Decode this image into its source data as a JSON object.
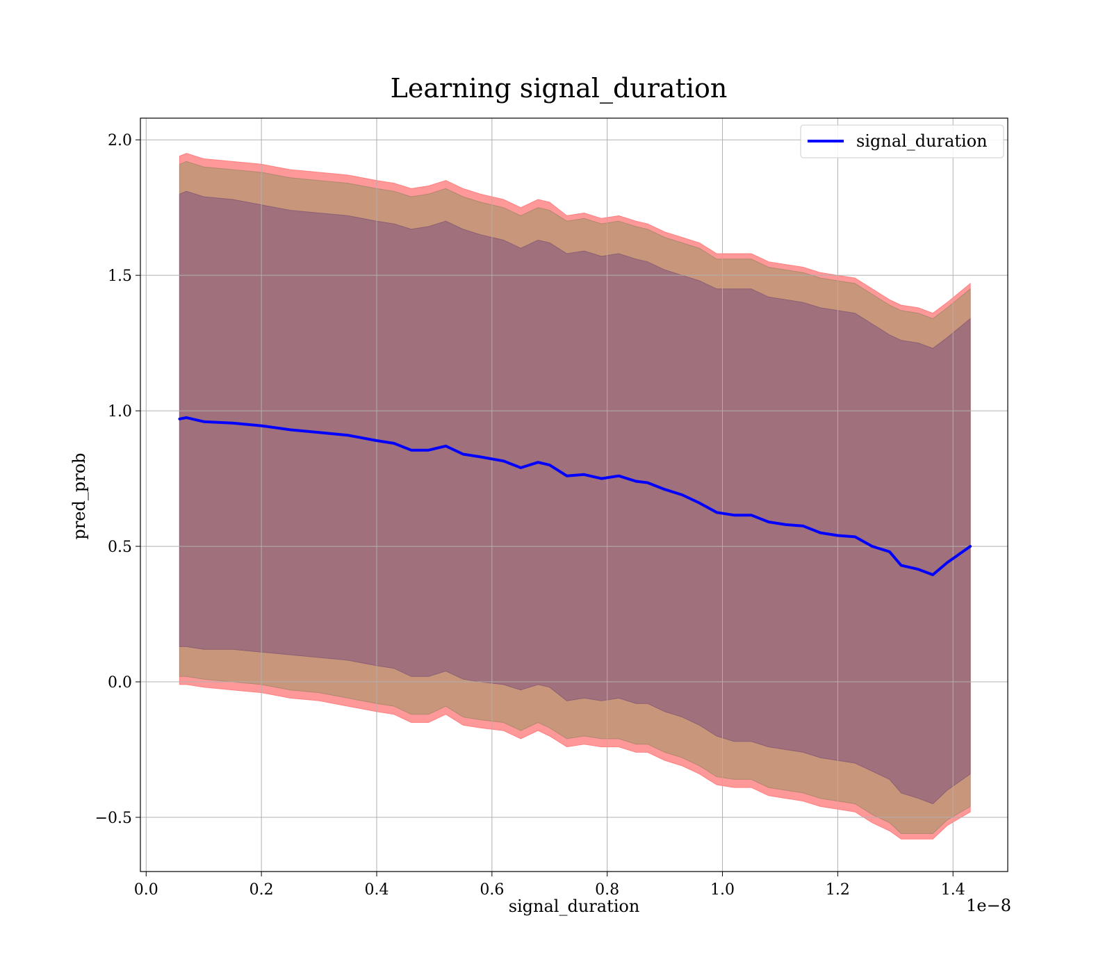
{
  "chart_data": {
    "type": "line",
    "title": "Learning signal_duration",
    "xlabel": "signal_duration",
    "ylabel": "pred_prob",
    "x_offset_label": "1e−8",
    "xlim": [
      -0.01,
      1.495
    ],
    "ylim": [
      -0.7,
      2.08
    ],
    "x_ticks": [
      0.0,
      0.2,
      0.4,
      0.6,
      0.8,
      1.0,
      1.2,
      1.4
    ],
    "x_tick_labels": [
      "0.0",
      "0.2",
      "0.4",
      "0.6",
      "0.8",
      "1.0",
      "1.2",
      "1.4"
    ],
    "y_ticks": [
      -0.5,
      0.0,
      0.5,
      1.0,
      1.5,
      2.0
    ],
    "y_tick_labels": [
      "−0.5",
      "0.0",
      "0.5",
      "1.0",
      "1.5",
      "2.0"
    ],
    "grid": true,
    "legend_position": "top-right",
    "colors": {
      "line": "#0000ff",
      "band_outer": "#ff9999",
      "band_middle": "#c8967a",
      "band_inner": "#a0707c"
    },
    "x": [
      0.058,
      0.07,
      0.1,
      0.15,
      0.2,
      0.25,
      0.3,
      0.35,
      0.4,
      0.43,
      0.46,
      0.49,
      0.52,
      0.55,
      0.58,
      0.62,
      0.65,
      0.68,
      0.7,
      0.73,
      0.76,
      0.79,
      0.82,
      0.85,
      0.87,
      0.9,
      0.93,
      0.96,
      0.99,
      1.02,
      1.05,
      1.08,
      1.11,
      1.14,
      1.17,
      1.2,
      1.23,
      1.26,
      1.29,
      1.31,
      1.34,
      1.365,
      1.39,
      1.43
    ],
    "series": [
      {
        "name": "signal_duration",
        "values": [
          0.97,
          0.975,
          0.96,
          0.955,
          0.945,
          0.93,
          0.92,
          0.91,
          0.89,
          0.88,
          0.855,
          0.855,
          0.87,
          0.84,
          0.83,
          0.815,
          0.79,
          0.81,
          0.8,
          0.76,
          0.765,
          0.75,
          0.76,
          0.74,
          0.735,
          0.71,
          0.69,
          0.66,
          0.625,
          0.615,
          0.615,
          0.59,
          0.58,
          0.575,
          0.55,
          0.54,
          0.535,
          0.5,
          0.48,
          0.43,
          0.415,
          0.395,
          0.44,
          0.5
        ],
        "band_inner": {
          "upper": [
            1.8,
            1.81,
            1.79,
            1.78,
            1.76,
            1.74,
            1.73,
            1.72,
            1.7,
            1.69,
            1.67,
            1.68,
            1.7,
            1.67,
            1.65,
            1.63,
            1.6,
            1.63,
            1.62,
            1.58,
            1.59,
            1.57,
            1.58,
            1.56,
            1.55,
            1.52,
            1.5,
            1.48,
            1.45,
            1.45,
            1.45,
            1.42,
            1.41,
            1.4,
            1.38,
            1.37,
            1.36,
            1.32,
            1.28,
            1.26,
            1.25,
            1.23,
            1.27,
            1.34
          ],
          "lower": [
            0.13,
            0.13,
            0.12,
            0.12,
            0.11,
            0.1,
            0.09,
            0.08,
            0.06,
            0.05,
            0.02,
            0.02,
            0.04,
            0.01,
            0.0,
            -0.01,
            -0.03,
            -0.01,
            -0.02,
            -0.07,
            -0.06,
            -0.07,
            -0.06,
            -0.08,
            -0.08,
            -0.11,
            -0.13,
            -0.16,
            -0.2,
            -0.22,
            -0.22,
            -0.24,
            -0.25,
            -0.26,
            -0.28,
            -0.29,
            -0.3,
            -0.33,
            -0.36,
            -0.41,
            -0.43,
            -0.45,
            -0.4,
            -0.34
          ]
        },
        "band_middle": {
          "upper": [
            1.91,
            1.92,
            1.9,
            1.89,
            1.88,
            1.86,
            1.85,
            1.84,
            1.82,
            1.81,
            1.79,
            1.8,
            1.82,
            1.79,
            1.77,
            1.75,
            1.72,
            1.75,
            1.74,
            1.7,
            1.71,
            1.69,
            1.7,
            1.68,
            1.67,
            1.64,
            1.62,
            1.6,
            1.56,
            1.56,
            1.56,
            1.53,
            1.52,
            1.51,
            1.49,
            1.48,
            1.47,
            1.43,
            1.39,
            1.37,
            1.36,
            1.34,
            1.38,
            1.45
          ],
          "lower": [
            0.02,
            0.02,
            0.01,
            0.0,
            -0.01,
            -0.03,
            -0.04,
            -0.06,
            -0.08,
            -0.09,
            -0.12,
            -0.12,
            -0.09,
            -0.13,
            -0.14,
            -0.15,
            -0.18,
            -0.15,
            -0.17,
            -0.21,
            -0.2,
            -0.21,
            -0.21,
            -0.23,
            -0.23,
            -0.26,
            -0.28,
            -0.31,
            -0.35,
            -0.36,
            -0.36,
            -0.39,
            -0.4,
            -0.41,
            -0.43,
            -0.44,
            -0.45,
            -0.49,
            -0.52,
            -0.56,
            -0.56,
            -0.56,
            -0.51,
            -0.46
          ]
        },
        "band_outer": {
          "upper": [
            1.94,
            1.95,
            1.93,
            1.92,
            1.91,
            1.89,
            1.88,
            1.87,
            1.85,
            1.84,
            1.82,
            1.83,
            1.85,
            1.82,
            1.8,
            1.78,
            1.75,
            1.78,
            1.77,
            1.72,
            1.73,
            1.71,
            1.72,
            1.7,
            1.69,
            1.66,
            1.64,
            1.62,
            1.58,
            1.58,
            1.58,
            1.55,
            1.54,
            1.53,
            1.51,
            1.5,
            1.49,
            1.45,
            1.41,
            1.39,
            1.38,
            1.36,
            1.4,
            1.47
          ],
          "lower": [
            -0.01,
            -0.01,
            -0.02,
            -0.03,
            -0.04,
            -0.06,
            -0.07,
            -0.09,
            -0.11,
            -0.12,
            -0.15,
            -0.15,
            -0.12,
            -0.16,
            -0.17,
            -0.18,
            -0.21,
            -0.18,
            -0.2,
            -0.24,
            -0.23,
            -0.24,
            -0.24,
            -0.26,
            -0.26,
            -0.29,
            -0.31,
            -0.34,
            -0.38,
            -0.39,
            -0.39,
            -0.42,
            -0.43,
            -0.44,
            -0.46,
            -0.47,
            -0.48,
            -0.52,
            -0.55,
            -0.58,
            -0.58,
            -0.58,
            -0.53,
            -0.48
          ]
        }
      }
    ]
  }
}
